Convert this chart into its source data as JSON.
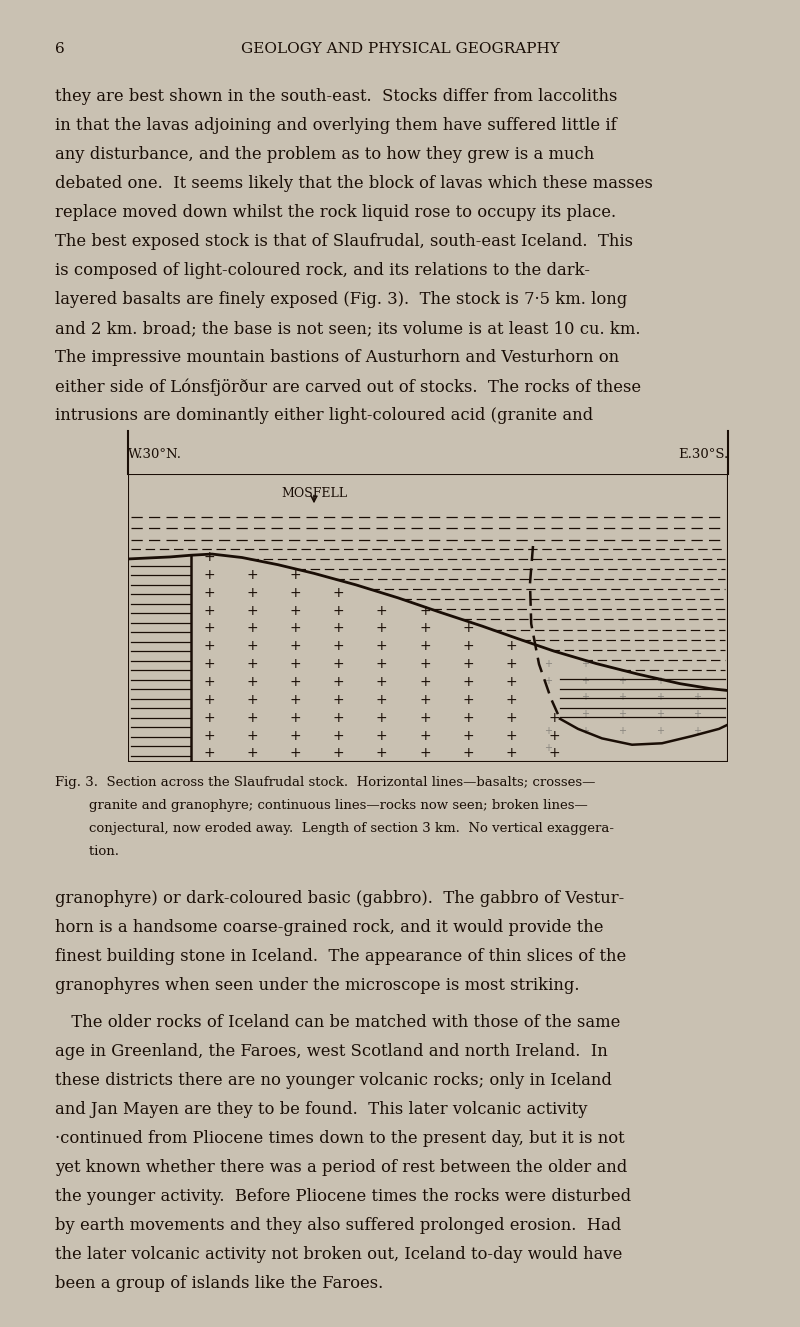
{
  "bg_color": "#c9c1b2",
  "text_color": "#1a0e06",
  "page_number": "6",
  "header": "GEOLOGY AND PHYSICAL GEOGRAPHY",
  "para1_lines": [
    "they are best shown in the south-east.  Stocks differ from laccoliths",
    "in that the lavas adjoining and overlying them have suffered little if",
    "any disturbance, and the problem as to how they grew is a much",
    "debated one.  It seems likely that the block of lavas which these masses",
    "replace moved down whilst the rock liquid rose to occupy its place.",
    "The best exposed stock is that of Slaufrudal, south-east Iceland.  This",
    "is composed of light-coloured rock, and its relations to the dark-",
    "layered basalts are finely exposed (Fig. 3).  The stock is 7·5 km. long",
    "and 2 km. broad; the base is not seen; its volume is at least 10 cu. km.",
    "The impressive mountain bastions of Austurhorn and Vesturhorn on",
    "either side of Lónsfjörður are carved out of stocks.  The rocks of these",
    "intrusions are dominantly either light-coloured acid (granite and"
  ],
  "label_left": "W.30°N.",
  "label_right": "E.30°S.",
  "mosfell_label": "MOSFELL",
  "fig_caption_lines": [
    "Fig. 3.  Section across the Slaufrudal stock.  Horizontal lines—basalts; crosses—",
    "        granite and granophyre; continuous lines—rocks now seen; broken lines—",
    "        conjectural, now eroded away.  Length of section 3 km.  No vertical exaggera-",
    "        tion."
  ],
  "para2_lines": [
    "granophyre) or dark-coloured basic (gabbro).  The gabbro of Vestur-",
    "horn is a handsome coarse-grained rock, and it would provide the",
    "finest building stone in Iceland.  The appearance of thin slices of the",
    "granophyres when seen under the microscope is most striking."
  ],
  "para3_lines": [
    " The older rocks of Iceland can be matched with those of the same",
    "age in Greenland, the Faroes, west Scotland and north Ireland.  In",
    "these districts there are no younger volcanic rocks; only in Iceland",
    "and Jan Mayen are they to be found.  This later volcanic activity",
    "·continued from Pliocene times down to the present day, but it is not",
    "yet known whether there was a period of rest between the older and",
    "the younger activity.  Before Pliocene times the rocks were disturbed",
    "by earth movements and they also suffered prolonged erosion.  Had",
    "the later volcanic activity not broken out, Iceland to-day would have",
    "been a group of islands like the Faroes."
  ]
}
